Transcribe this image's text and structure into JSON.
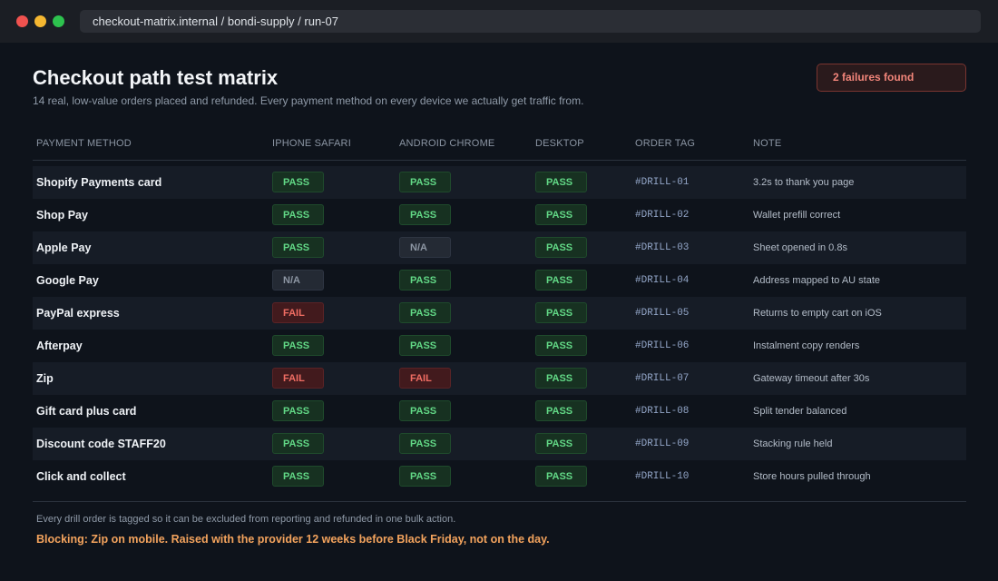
{
  "browser": {
    "url": "checkout-matrix.internal / bondi-supply / run-07"
  },
  "header": {
    "title": "Checkout path test matrix",
    "subtitle": "14 real, low-value orders placed and refunded. Every payment method on every device we actually get traffic from.",
    "failures_badge": "2 failures found"
  },
  "table": {
    "columns": [
      "PAYMENT METHOD",
      "IPHONE SAFARI",
      "ANDROID CHROME",
      "DESKTOP",
      "ORDER TAG",
      "NOTE"
    ],
    "rows": [
      {
        "method": "Shopify Payments card",
        "ios": "PASS",
        "android": "PASS",
        "desktop": "PASS",
        "tag": "#DRILL-01",
        "note": "3.2s to thank you page"
      },
      {
        "method": "Shop Pay",
        "ios": "PASS",
        "android": "PASS",
        "desktop": "PASS",
        "tag": "#DRILL-02",
        "note": "Wallet prefill correct"
      },
      {
        "method": "Apple Pay",
        "ios": "PASS",
        "android": "N/A",
        "desktop": "PASS",
        "tag": "#DRILL-03",
        "note": "Sheet opened in 0.8s"
      },
      {
        "method": "Google Pay",
        "ios": "N/A",
        "android": "PASS",
        "desktop": "PASS",
        "tag": "#DRILL-04",
        "note": "Address mapped to AU state"
      },
      {
        "method": "PayPal express",
        "ios": "FAIL",
        "android": "PASS",
        "desktop": "PASS",
        "tag": "#DRILL-05",
        "note": "Returns to empty cart on iOS"
      },
      {
        "method": "Afterpay",
        "ios": "PASS",
        "android": "PASS",
        "desktop": "PASS",
        "tag": "#DRILL-06",
        "note": "Instalment copy renders"
      },
      {
        "method": "Zip",
        "ios": "FAIL",
        "android": "FAIL",
        "desktop": "PASS",
        "tag": "#DRILL-07",
        "note": "Gateway timeout after 30s"
      },
      {
        "method": "Gift card plus card",
        "ios": "PASS",
        "android": "PASS",
        "desktop": "PASS",
        "tag": "#DRILL-08",
        "note": "Split tender balanced"
      },
      {
        "method": "Discount code STAFF20",
        "ios": "PASS",
        "android": "PASS",
        "desktop": "PASS",
        "tag": "#DRILL-09",
        "note": "Stacking rule held"
      },
      {
        "method": "Click and collect",
        "ios": "PASS",
        "android": "PASS",
        "desktop": "PASS",
        "tag": "#DRILL-10",
        "note": "Store hours pulled through"
      }
    ]
  },
  "footer": {
    "note": "Every drill order is tagged so it can be excluded from reporting and refunded in one bulk action.",
    "blocking": "Blocking: Zip on mobile. Raised with the provider 12 weeks before Black Friday, not on the day."
  },
  "colors": {
    "pass": "#62d886",
    "fail": "#f06d63",
    "na": "#8d96a3",
    "blocking": "#f3a35d"
  }
}
